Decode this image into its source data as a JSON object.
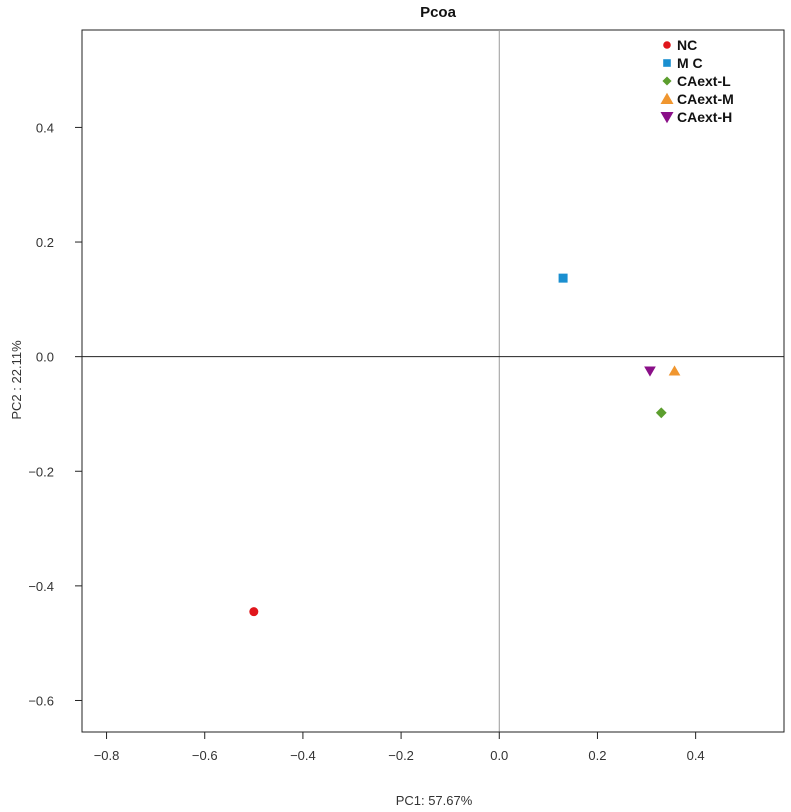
{
  "chart_data": {
    "type": "scatter",
    "title": "Pcoa",
    "xlabel": "PC1: 57.67%",
    "ylabel": "PC2 : 22.11%",
    "xlim": [
      -0.85,
      0.58
    ],
    "ylim": [
      -0.655,
      0.57
    ],
    "xticks": [
      -0.8,
      -0.6,
      -0.4,
      -0.2,
      0.0,
      0.2,
      0.4
    ],
    "xtick_labels": [
      "−0.8",
      "−0.6",
      "−0.4",
      "−0.2",
      "0.0",
      "0.2",
      "0.4"
    ],
    "yticks": [
      -0.6,
      -0.4,
      -0.2,
      0.0,
      0.2,
      0.4
    ],
    "ytick_labels": [
      "−0.6",
      "−0.4",
      "−0.2",
      "0.0",
      "0.2",
      "0.4"
    ],
    "reference_lines": {
      "x": 0,
      "y": 0
    },
    "grid": false,
    "legend_position": "top-right",
    "series": [
      {
        "name": "NC",
        "marker": "circle",
        "color": "#e0161c",
        "points": [
          {
            "x": -0.5,
            "y": -0.445
          }
        ]
      },
      {
        "name": "M C",
        "marker": "square",
        "color": "#1a8fd0",
        "points": [
          {
            "x": 0.13,
            "y": 0.137
          }
        ]
      },
      {
        "name": "CAext-L",
        "marker": "diamond",
        "color": "#5c9e2e",
        "points": [
          {
            "x": 0.33,
            "y": -0.098
          }
        ]
      },
      {
        "name": "CAext-M",
        "marker": "triangle-up",
        "color": "#f0962f",
        "points": [
          {
            "x": 0.357,
            "y": -0.025
          }
        ]
      },
      {
        "name": "CAext-H",
        "marker": "triangle-down",
        "color": "#8a0f88",
        "points": [
          {
            "x": 0.307,
            "y": -0.025
          }
        ]
      }
    ]
  }
}
